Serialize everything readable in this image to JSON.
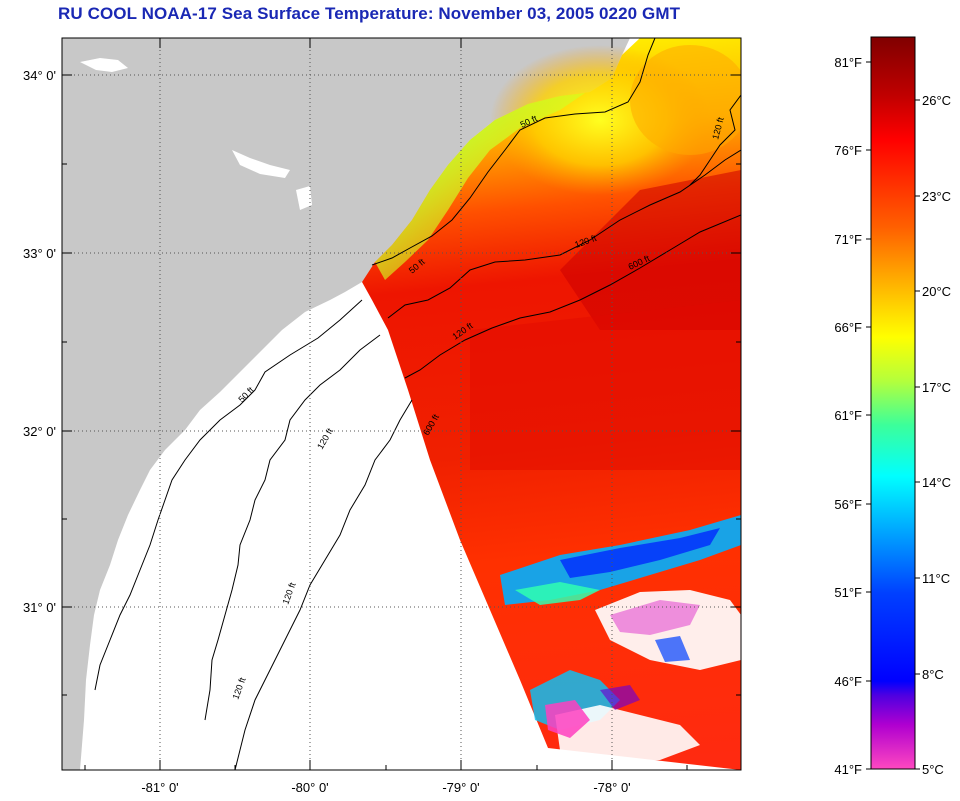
{
  "title": "RU COOL  NOAA-17  Sea Surface Temperature:  November 03, 2005 0220 GMT",
  "map": {
    "lat_labels": [
      "34° 0'",
      "33° 0'",
      "32° 0'",
      "31° 0'"
    ],
    "lon_labels": [
      "-81° 0'",
      "-80° 0'",
      "-79° 0'",
      "-78° 0'"
    ],
    "contour_labels": [
      "50 ft",
      "120 ft",
      "600 ft"
    ],
    "colors": {
      "land": "#c8c8c8",
      "ocean_nodata": "#ffffff",
      "grid": "#000000"
    }
  },
  "colorbar": {
    "fahrenheit": [
      "81°F",
      "76°F",
      "71°F",
      "66°F",
      "61°F",
      "56°F",
      "51°F",
      "46°F",
      "41°F"
    ],
    "celsius": [
      "26°C",
      "23°C",
      "20°C",
      "17°C",
      "14°C",
      "11°C",
      "8°C",
      "5°C"
    ],
    "gradient_colors": [
      "#800000",
      "#d10000",
      "#ff0000",
      "#ff5a00",
      "#ff9a00",
      "#ffd800",
      "#ffff00",
      "#b4ff3c",
      "#3cff9a",
      "#00ffff",
      "#00b4ff",
      "#0046ff",
      "#0000ff",
      "#6a00d0",
      "#c800c8",
      "#ff40c0"
    ]
  }
}
